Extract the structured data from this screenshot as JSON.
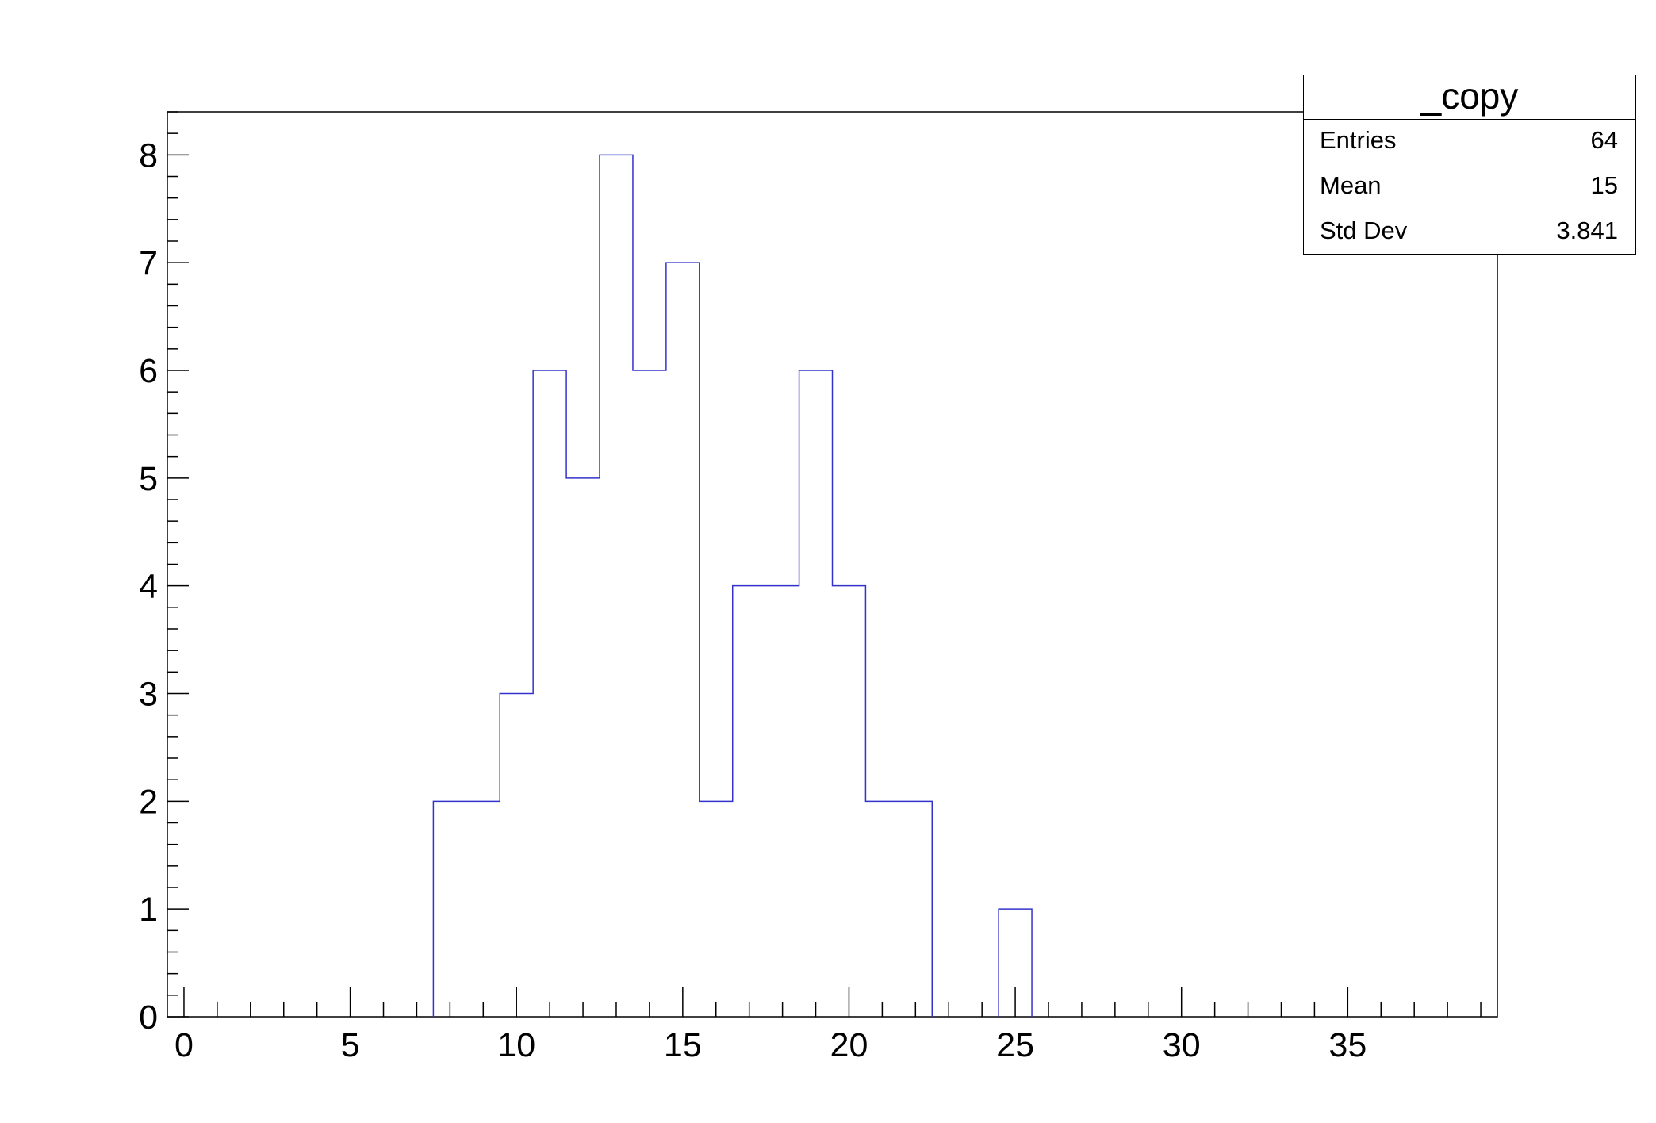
{
  "chart_data": {
    "type": "histogram",
    "title": "",
    "xlabel": "",
    "ylabel": "",
    "xlim": [
      -0.5,
      39.5
    ],
    "ylim": [
      0,
      8.4
    ],
    "bin_width": 1,
    "bin_centers": [
      0,
      1,
      2,
      3,
      4,
      5,
      6,
      7,
      8,
      9,
      10,
      11,
      12,
      13,
      14,
      15,
      16,
      17,
      18,
      19,
      20,
      21,
      22,
      23,
      24,
      25,
      26,
      27,
      28,
      29,
      30,
      31,
      32,
      33,
      34,
      35,
      36,
      37,
      38,
      39
    ],
    "values": [
      0,
      0,
      0,
      0,
      0,
      0,
      0,
      0,
      2,
      2,
      3,
      6,
      5,
      8,
      6,
      7,
      2,
      4,
      4,
      6,
      4,
      2,
      2,
      0,
      0,
      1,
      0,
      0,
      0,
      0,
      0,
      0,
      0,
      0,
      0,
      0,
      0,
      0,
      0,
      0
    ],
    "xticks": [
      "0",
      "5",
      "10",
      "15",
      "20",
      "25",
      "30",
      "35"
    ],
    "yticks": [
      "0",
      "1",
      "2",
      "3",
      "4",
      "5",
      "6",
      "7",
      "8"
    ],
    "line_color": "#3333cc"
  },
  "stats": {
    "title": "_copy",
    "rows": [
      {
        "key": "Entries",
        "value": "64"
      },
      {
        "key": "Mean",
        "value": "15"
      },
      {
        "key": "Std Dev",
        "value": "3.841"
      }
    ]
  }
}
